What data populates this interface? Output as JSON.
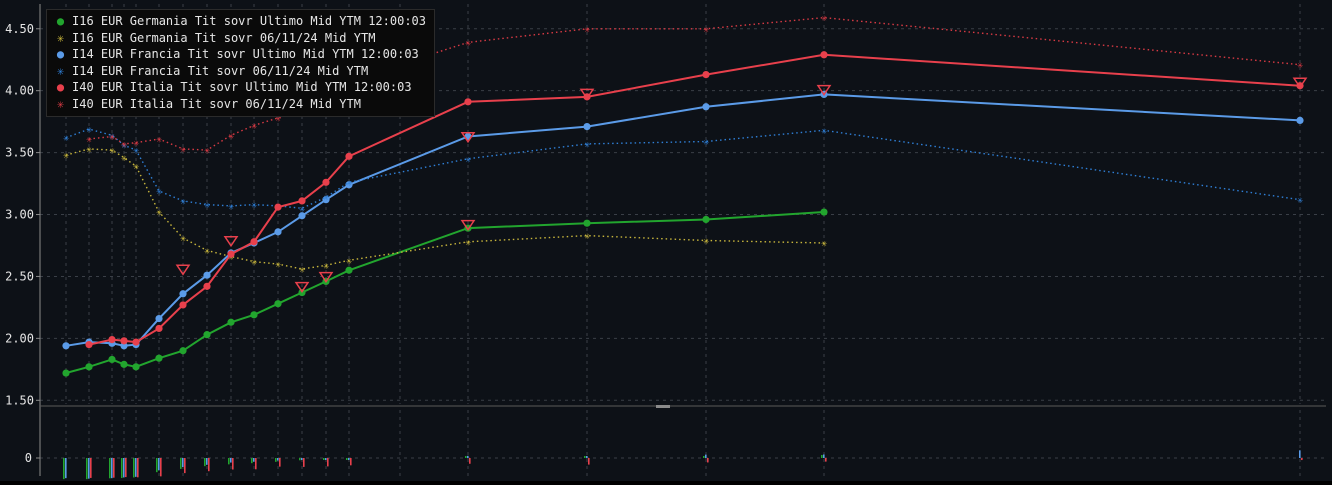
{
  "chart_data": {
    "type": "line",
    "title": "",
    "xlabel": "",
    "ylabel": "",
    "ylim": [
      1.47,
      4.7
    ],
    "yticks": [
      "4.50",
      "4.00",
      "3.50",
      "3.00",
      "2.50",
      "2.00",
      "1.50"
    ],
    "lower_panel": {
      "ytick": "0"
    },
    "grid": true,
    "legend_position": "top-left",
    "x": [
      0.25,
      0.5,
      1,
      1.25,
      1.5,
      2,
      2.5,
      3,
      3.5,
      4,
      4.5,
      5,
      5.5,
      6,
      7,
      10,
      15,
      20,
      30,
      50
    ],
    "series": [
      {
        "name": "I16 EUR Germania Tit sovr Ultimo Mid YTM 12:00:03",
        "color": "#22a52e",
        "style": "solid",
        "marker": "dot",
        "values": [
          1.72,
          1.77,
          1.83,
          1.79,
          1.77,
          1.84,
          1.9,
          2.03,
          2.13,
          2.19,
          2.28,
          2.37,
          2.46,
          2.55,
          null,
          2.89,
          2.93,
          2.96,
          3.02,
          null
        ]
      },
      {
        "name": "I16 EUR Germania Tit sovr 06/11/24 Mid YTM",
        "color": "#c8b63c",
        "style": "dotted",
        "marker": "star",
        "values": [
          3.48,
          3.53,
          3.52,
          3.46,
          3.39,
          3.02,
          2.81,
          2.71,
          2.66,
          2.62,
          2.6,
          2.56,
          2.59,
          2.63,
          null,
          2.78,
          2.83,
          2.79,
          2.77,
          null
        ]
      },
      {
        "name": "I14 EUR Francia Tit sovr Ultimo Mid YTM 12:00:03",
        "color": "#5b9be8",
        "style": "solid",
        "marker": "dot",
        "values": [
          1.94,
          1.97,
          1.96,
          1.94,
          1.95,
          2.16,
          2.36,
          2.51,
          2.69,
          2.77,
          2.86,
          2.99,
          3.12,
          3.24,
          null,
          3.63,
          3.71,
          3.87,
          3.97,
          3.76
        ]
      },
      {
        "name": "I14 EUR Francia Tit sovr 06/11/24 Mid YTM",
        "color": "#2f7fd6",
        "style": "dotted",
        "marker": "star",
        "values": [
          3.62,
          3.69,
          3.64,
          3.56,
          3.52,
          3.19,
          3.11,
          3.08,
          3.07,
          3.08,
          3.07,
          3.05,
          3.14,
          3.26,
          null,
          3.45,
          3.57,
          3.59,
          3.68,
          3.12
        ]
      },
      {
        "name": "I40 EUR Italia Tit sovr Ultimo Mid YTM 12:00:03",
        "color": "#e8404c",
        "style": "solid",
        "marker": "dot",
        "values": [
          null,
          1.95,
          1.99,
          1.98,
          1.97,
          2.08,
          2.27,
          2.42,
          2.68,
          2.78,
          3.06,
          3.11,
          3.26,
          3.47,
          null,
          3.91,
          3.95,
          4.13,
          4.29,
          4.04
        ]
      },
      {
        "name": "I40 EUR Italia Tit sovr 06/11/24 Mid YTM",
        "color": "#d93a44",
        "style": "dotted",
        "marker": "star",
        "values": [
          null,
          3.61,
          3.63,
          3.57,
          3.58,
          3.61,
          3.53,
          3.52,
          3.64,
          3.72,
          3.78,
          3.85,
          3.96,
          4.08,
          null,
          4.39,
          4.5,
          4.5,
          4.59,
          4.21
        ]
      }
    ],
    "triangle_markers": [
      {
        "x": 2.5,
        "y": 2.55
      },
      {
        "x": 3.5,
        "y": 2.78
      },
      {
        "x": 5,
        "y": 2.41
      },
      {
        "x": 5.5,
        "y": 2.49
      },
      {
        "x": 10,
        "y": 2.91
      },
      {
        "x": 10,
        "y": 3.62
      },
      {
        "x": 15,
        "y": 3.97
      },
      {
        "x": 30,
        "y": 4.0
      },
      {
        "x": 50,
        "y": 4.06
      }
    ]
  }
}
